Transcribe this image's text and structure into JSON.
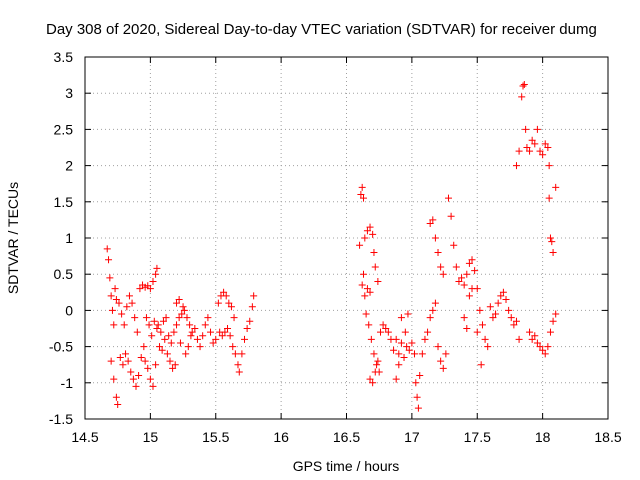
{
  "chart_data": {
    "type": "scatter",
    "title": "Day 308 of 2020, Sidereal Day-to-day VTEC variation (SDTVAR) for receiver dumg",
    "xlabel": "GPS time / hours",
    "ylabel": "SDTVAR / TECUs",
    "xlim": [
      14.5,
      18.5
    ],
    "ylim": [
      -1.5,
      3.5
    ],
    "xticks": [
      14.5,
      15,
      15.5,
      16,
      16.5,
      17,
      17.5,
      18,
      18.5
    ],
    "xtick_labels": [
      "14.5",
      "15",
      "15.5",
      "16",
      "16.5",
      "17",
      "17.5",
      "18",
      "18.5"
    ],
    "yticks": [
      -1.5,
      -1,
      -0.5,
      0,
      0.5,
      1,
      1.5,
      2,
      2.5,
      3,
      3.5
    ],
    "ytick_labels": [
      "-1.5",
      "-1",
      "-0.5",
      "0",
      "0.5",
      "1",
      "1.5",
      "2",
      "2.5",
      "3",
      "3.5"
    ],
    "grid": true,
    "marker": "+",
    "series": [
      {
        "name": "SDTVAR",
        "color": "#ff0000",
        "points": [
          [
            14.67,
            0.85
          ],
          [
            14.68,
            0.7
          ],
          [
            14.69,
            0.45
          ],
          [
            14.7,
            0.2
          ],
          [
            14.71,
            0.0
          ],
          [
            14.72,
            -0.2
          ],
          [
            14.7,
            -0.7
          ],
          [
            14.72,
            -0.95
          ],
          [
            14.74,
            -1.2
          ],
          [
            14.75,
            -1.3
          ],
          [
            14.73,
            0.3
          ],
          [
            14.74,
            0.15
          ],
          [
            14.76,
            0.1
          ],
          [
            14.78,
            -0.05
          ],
          [
            14.8,
            -0.2
          ],
          [
            14.82,
            0.05
          ],
          [
            14.84,
            0.2
          ],
          [
            14.86,
            0.1
          ],
          [
            14.88,
            -0.1
          ],
          [
            14.9,
            -0.3
          ],
          [
            14.77,
            -0.65
          ],
          [
            14.79,
            -0.75
          ],
          [
            14.81,
            -0.6
          ],
          [
            14.83,
            -0.7
          ],
          [
            14.85,
            -0.85
          ],
          [
            14.87,
            -0.95
          ],
          [
            14.89,
            -1.05
          ],
          [
            14.91,
            -0.9
          ],
          [
            14.93,
            -0.65
          ],
          [
            14.95,
            -0.5
          ],
          [
            14.92,
            0.3
          ],
          [
            14.94,
            0.35
          ],
          [
            14.96,
            0.32
          ],
          [
            14.98,
            0.34
          ],
          [
            15.0,
            0.3
          ],
          [
            15.02,
            0.4
          ],
          [
            15.04,
            0.5
          ],
          [
            15.05,
            0.58
          ],
          [
            14.97,
            -0.1
          ],
          [
            14.99,
            -0.2
          ],
          [
            15.01,
            -0.35
          ],
          [
            15.03,
            -0.15
          ],
          [
            15.05,
            -0.25
          ],
          [
            14.96,
            -0.7
          ],
          [
            14.98,
            -0.8
          ],
          [
            15.0,
            -0.95
          ],
          [
            15.02,
            -1.05
          ],
          [
            15.04,
            -0.75
          ],
          [
            15.06,
            -0.2
          ],
          [
            15.08,
            -0.3
          ],
          [
            15.1,
            -0.15
          ],
          [
            15.12,
            -0.1
          ],
          [
            15.14,
            -0.35
          ],
          [
            15.16,
            -0.45
          ],
          [
            15.18,
            -0.3
          ],
          [
            15.2,
            -0.2
          ],
          [
            15.07,
            -0.5
          ],
          [
            15.09,
            -0.55
          ],
          [
            15.11,
            -0.4
          ],
          [
            15.13,
            -0.6
          ],
          [
            15.15,
            -0.7
          ],
          [
            15.17,
            -0.8
          ],
          [
            15.19,
            -0.75
          ],
          [
            15.22,
            -0.1
          ],
          [
            15.24,
            -0.05
          ],
          [
            15.26,
            0.0
          ],
          [
            15.28,
            -0.1
          ],
          [
            15.3,
            -0.2
          ],
          [
            15.32,
            -0.3
          ],
          [
            15.34,
            -0.25
          ],
          [
            15.36,
            -0.4
          ],
          [
            15.2,
            0.1
          ],
          [
            15.22,
            0.15
          ],
          [
            15.25,
            0.05
          ],
          [
            15.23,
            -0.45
          ],
          [
            15.27,
            -0.6
          ],
          [
            15.29,
            -0.5
          ],
          [
            15.31,
            -0.35
          ],
          [
            15.38,
            -0.5
          ],
          [
            15.4,
            -0.35
          ],
          [
            15.42,
            -0.2
          ],
          [
            15.44,
            -0.1
          ],
          [
            15.46,
            -0.3
          ],
          [
            15.48,
            -0.45
          ],
          [
            15.5,
            -0.4
          ],
          [
            15.52,
            0.1
          ],
          [
            15.54,
            0.2
          ],
          [
            15.56,
            0.25
          ],
          [
            15.58,
            0.2
          ],
          [
            15.6,
            0.1
          ],
          [
            15.62,
            0.05
          ],
          [
            15.64,
            -0.1
          ],
          [
            15.53,
            -0.3
          ],
          [
            15.55,
            -0.35
          ],
          [
            15.57,
            -0.3
          ],
          [
            15.59,
            -0.25
          ],
          [
            15.61,
            -0.35
          ],
          [
            15.63,
            -0.5
          ],
          [
            15.65,
            -0.6
          ],
          [
            15.67,
            -0.75
          ],
          [
            15.68,
            -0.85
          ],
          [
            15.7,
            -0.6
          ],
          [
            15.72,
            -0.4
          ],
          [
            15.74,
            -0.25
          ],
          [
            15.76,
            -0.15
          ],
          [
            15.78,
            0.05
          ],
          [
            15.79,
            0.2
          ],
          [
            16.6,
            0.9
          ],
          [
            16.61,
            1.6
          ],
          [
            16.62,
            1.7
          ],
          [
            16.63,
            1.55
          ],
          [
            16.62,
            0.35
          ],
          [
            16.64,
            0.2
          ],
          [
            16.66,
            0.3
          ],
          [
            16.68,
            0.25
          ],
          [
            16.63,
            0.5
          ],
          [
            16.64,
            1.0
          ],
          [
            16.66,
            1.1
          ],
          [
            16.68,
            1.15
          ],
          [
            16.7,
            1.05
          ],
          [
            16.71,
            0.8
          ],
          [
            16.72,
            0.6
          ],
          [
            16.74,
            0.4
          ],
          [
            16.65,
            -0.05
          ],
          [
            16.67,
            -0.2
          ],
          [
            16.69,
            -0.4
          ],
          [
            16.71,
            -0.6
          ],
          [
            16.73,
            -0.75
          ],
          [
            16.75,
            -0.85
          ],
          [
            16.68,
            -0.95
          ],
          [
            16.7,
            -1.0
          ],
          [
            16.72,
            -0.85
          ],
          [
            16.74,
            -0.7
          ],
          [
            16.76,
            -0.3
          ],
          [
            16.78,
            -0.2
          ],
          [
            16.8,
            -0.25
          ],
          [
            16.82,
            -0.3
          ],
          [
            16.84,
            -0.4
          ],
          [
            16.86,
            -0.55
          ],
          [
            16.88,
            -0.4
          ],
          [
            16.9,
            -0.6
          ],
          [
            16.92,
            -0.45
          ],
          [
            16.94,
            -0.65
          ],
          [
            16.96,
            -0.5
          ],
          [
            16.98,
            -0.55
          ],
          [
            16.88,
            -0.95
          ],
          [
            16.9,
            -0.75
          ],
          [
            16.92,
            -0.1
          ],
          [
            16.95,
            -0.3
          ],
          [
            16.97,
            -0.05
          ],
          [
            17.0,
            -0.45
          ],
          [
            17.02,
            -0.6
          ],
          [
            17.03,
            -1.0
          ],
          [
            17.04,
            -1.2
          ],
          [
            17.05,
            -1.35
          ],
          [
            17.06,
            -0.9
          ],
          [
            17.08,
            -0.6
          ],
          [
            17.1,
            -0.4
          ],
          [
            17.12,
            -0.3
          ],
          [
            17.14,
            -0.1
          ],
          [
            17.16,
            0.0
          ],
          [
            17.18,
            0.1
          ],
          [
            17.14,
            1.2
          ],
          [
            17.16,
            1.25
          ],
          [
            17.18,
            1.0
          ],
          [
            17.2,
            0.8
          ],
          [
            17.22,
            0.6
          ],
          [
            17.24,
            0.5
          ],
          [
            17.2,
            -0.5
          ],
          [
            17.22,
            -0.7
          ],
          [
            17.24,
            -0.8
          ],
          [
            17.26,
            -0.6
          ],
          [
            17.28,
            1.55
          ],
          [
            17.3,
            1.3
          ],
          [
            17.32,
            0.9
          ],
          [
            17.34,
            0.6
          ],
          [
            17.36,
            0.4
          ],
          [
            17.38,
            0.45
          ],
          [
            17.4,
            0.35
          ],
          [
            17.42,
            0.5
          ],
          [
            17.44,
            0.65
          ],
          [
            17.46,
            0.7
          ],
          [
            17.48,
            0.55
          ],
          [
            17.5,
            0.3
          ],
          [
            17.52,
            0.0
          ],
          [
            17.54,
            -0.2
          ],
          [
            17.56,
            -0.4
          ],
          [
            17.58,
            -0.5
          ],
          [
            17.4,
            -0.1
          ],
          [
            17.42,
            -0.25
          ],
          [
            17.44,
            0.2
          ],
          [
            17.46,
            0.3
          ],
          [
            17.5,
            -0.3
          ],
          [
            17.53,
            -0.75
          ],
          [
            17.6,
            0.05
          ],
          [
            17.62,
            -0.1
          ],
          [
            17.64,
            -0.05
          ],
          [
            17.66,
            0.1
          ],
          [
            17.68,
            0.2
          ],
          [
            17.7,
            0.25
          ],
          [
            17.72,
            0.15
          ],
          [
            17.74,
            0.0
          ],
          [
            17.76,
            -0.1
          ],
          [
            17.78,
            -0.2
          ],
          [
            17.8,
            -0.15
          ],
          [
            17.82,
            -0.4
          ],
          [
            17.8,
            2.0
          ],
          [
            17.82,
            2.2
          ],
          [
            17.84,
            2.95
          ],
          [
            17.85,
            3.1
          ],
          [
            17.86,
            3.12
          ],
          [
            17.87,
            2.5
          ],
          [
            17.88,
            2.25
          ],
          [
            17.9,
            2.2
          ],
          [
            17.92,
            2.35
          ],
          [
            17.94,
            2.3
          ],
          [
            17.96,
            2.5
          ],
          [
            17.98,
            2.2
          ],
          [
            18.0,
            2.15
          ],
          [
            18.02,
            2.3
          ],
          [
            18.04,
            2.25
          ],
          [
            18.05,
            2.0
          ],
          [
            17.9,
            -0.3
          ],
          [
            17.92,
            -0.4
          ],
          [
            17.94,
            -0.35
          ],
          [
            17.96,
            -0.45
          ],
          [
            17.98,
            -0.5
          ],
          [
            18.0,
            -0.55
          ],
          [
            18.02,
            -0.6
          ],
          [
            18.04,
            -0.5
          ],
          [
            18.05,
            1.55
          ],
          [
            18.06,
            1.0
          ],
          [
            18.07,
            0.95
          ],
          [
            18.08,
            0.8
          ],
          [
            18.1,
            1.7
          ],
          [
            18.06,
            -0.3
          ],
          [
            18.08,
            -0.15
          ],
          [
            18.1,
            -0.05
          ]
        ]
      }
    ]
  }
}
